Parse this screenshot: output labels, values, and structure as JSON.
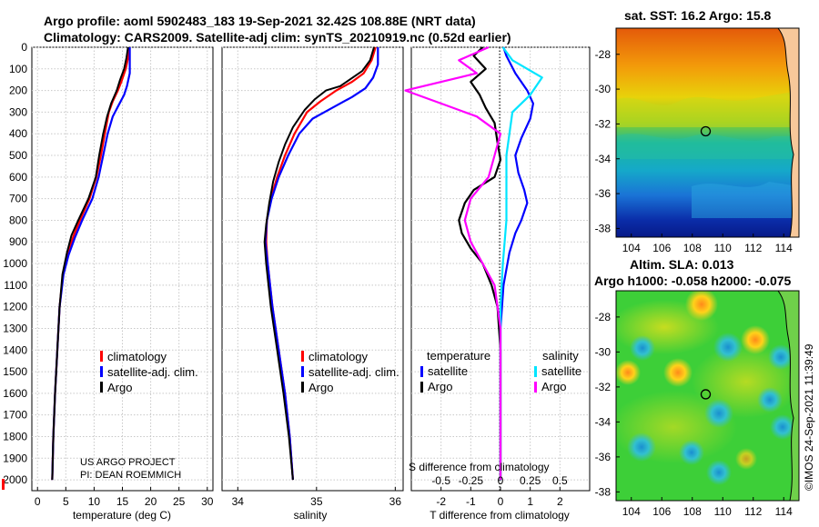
{
  "header": {
    "line1": "Argo profile: aoml 5902483_183 19-Sep-2021 32.42S 108.88E (NRT data)",
    "line2": "Climatology: CARS2009. Satellite-adj clim: synTS_20210919.nc (0.52d earlier)"
  },
  "credit": "©IMOS 24-Sep-2021 11:39:49",
  "project": {
    "line1": "US ARGO PROJECT",
    "line2": "PI: DEAN ROEMMICH"
  },
  "colors": {
    "climatology": "#ff0000",
    "satellite": "#0000ff",
    "argo": "#000000",
    "sal_sat": "#00e5ff",
    "sal_argo": "#ff00ff"
  },
  "chart_data": [
    {
      "type": "line",
      "name": "temperature-profile",
      "xlabel": "temperature (deg C)",
      "ylabel": "",
      "xlim": [
        -1,
        31
      ],
      "ylim": [
        2050,
        0
      ],
      "xticks": [
        "0",
        "5",
        "10",
        "15",
        "20",
        "25",
        "30"
      ],
      "yticks": [
        "0",
        "100",
        "200",
        "300",
        "400",
        "500",
        "600",
        "700",
        "800",
        "900",
        "1000",
        "1100",
        "1200",
        "1300",
        "1400",
        "1500",
        "1600",
        "1700",
        "1800",
        "1900",
        "2000"
      ],
      "legend": [
        "climatology",
        "satellite-adj. clim.",
        "Argo"
      ],
      "series": [
        {
          "name": "climatology",
          "points": [
            [
              16.2,
              0
            ],
            [
              16.0,
              50
            ],
            [
              15.6,
              100
            ],
            [
              14.8,
              160
            ],
            [
              14.2,
              200
            ],
            [
              13.3,
              250
            ],
            [
              12.6,
              300
            ],
            [
              11.9,
              400
            ],
            [
              11.2,
              500
            ],
            [
              10.4,
              600
            ],
            [
              9.2,
              700
            ],
            [
              7.5,
              800
            ],
            [
              6.4,
              870
            ],
            [
              5.4,
              950
            ],
            [
              4.5,
              1050
            ],
            [
              3.9,
              1200
            ],
            [
              3.5,
              1400
            ],
            [
              3.1,
              1600
            ],
            [
              2.8,
              1800
            ],
            [
              2.6,
              2000
            ]
          ]
        },
        {
          "name": "satellite-adj. clim.",
          "points": [
            [
              16.3,
              0
            ],
            [
              16.3,
              60
            ],
            [
              16.3,
              120
            ],
            [
              15.8,
              180
            ],
            [
              15.3,
              220
            ],
            [
              14.3,
              270
            ],
            [
              13.3,
              320
            ],
            [
              12.4,
              400
            ],
            [
              11.6,
              500
            ],
            [
              10.8,
              600
            ],
            [
              9.7,
              700
            ],
            [
              7.9,
              800
            ],
            [
              6.6,
              880
            ],
            [
              5.5,
              960
            ],
            [
              4.6,
              1050
            ],
            [
              3.9,
              1200
            ],
            [
              3.5,
              1400
            ],
            [
              3.1,
              1600
            ],
            [
              2.8,
              1800
            ],
            [
              2.6,
              2000
            ]
          ]
        },
        {
          "name": "Argo",
          "points": [
            [
              16.0,
              0
            ],
            [
              15.7,
              50
            ],
            [
              15.3,
              100
            ],
            [
              14.6,
              150
            ],
            [
              14.0,
              200
            ],
            [
              13.0,
              260
            ],
            [
              12.3,
              320
            ],
            [
              11.6,
              400
            ],
            [
              10.9,
              500
            ],
            [
              10.3,
              600
            ],
            [
              9.0,
              700
            ],
            [
              7.2,
              800
            ],
            [
              6.0,
              870
            ],
            [
              5.2,
              950
            ],
            [
              4.4,
              1050
            ],
            [
              3.9,
              1200
            ],
            [
              3.5,
              1400
            ],
            [
              3.1,
              1600
            ],
            [
              2.8,
              1800
            ],
            [
              2.6,
              2000
            ]
          ]
        }
      ]
    },
    {
      "type": "line",
      "name": "salinity-profile",
      "xlabel": "salinity",
      "xlim": [
        33.8,
        36.1
      ],
      "ylim": [
        2050,
        0
      ],
      "xticks": [
        "34",
        "35",
        "36"
      ],
      "legend": [
        "climatology",
        "satellite-adj. clim.",
        "Argo"
      ],
      "series": [
        {
          "name": "climatology",
          "points": [
            [
              35.75,
              0
            ],
            [
              35.7,
              60
            ],
            [
              35.6,
              120
            ],
            [
              35.45,
              160
            ],
            [
              35.25,
              200
            ],
            [
              35.05,
              250
            ],
            [
              34.88,
              300
            ],
            [
              34.72,
              400
            ],
            [
              34.6,
              500
            ],
            [
              34.5,
              600
            ],
            [
              34.42,
              700
            ],
            [
              34.37,
              800
            ],
            [
              34.36,
              900
            ],
            [
              34.38,
              1000
            ],
            [
              34.44,
              1200
            ],
            [
              34.52,
              1400
            ],
            [
              34.6,
              1600
            ],
            [
              34.66,
              1800
            ],
            [
              34.7,
              2000
            ]
          ]
        },
        {
          "name": "satellite-adj. clim.",
          "points": [
            [
              35.78,
              0
            ],
            [
              35.78,
              80
            ],
            [
              35.72,
              140
            ],
            [
              35.62,
              190
            ],
            [
              35.45,
              230
            ],
            [
              35.2,
              280
            ],
            [
              34.95,
              330
            ],
            [
              34.78,
              400
            ],
            [
              34.64,
              500
            ],
            [
              34.52,
              600
            ],
            [
              34.43,
              700
            ],
            [
              34.37,
              800
            ],
            [
              34.35,
              900
            ],
            [
              34.38,
              1000
            ],
            [
              34.44,
              1200
            ],
            [
              34.52,
              1400
            ],
            [
              34.6,
              1600
            ],
            [
              34.66,
              1800
            ],
            [
              34.7,
              2000
            ]
          ]
        },
        {
          "name": "Argo",
          "points": [
            [
              35.73,
              0
            ],
            [
              35.68,
              60
            ],
            [
              35.58,
              110
            ],
            [
              35.42,
              150
            ],
            [
              35.3,
              180
            ],
            [
              35.12,
              200
            ],
            [
              34.98,
              240
            ],
            [
              34.85,
              290
            ],
            [
              34.7,
              370
            ],
            [
              34.6,
              450
            ],
            [
              34.52,
              530
            ],
            [
              34.45,
              620
            ],
            [
              34.4,
              720
            ],
            [
              34.36,
              820
            ],
            [
              34.34,
              900
            ],
            [
              34.36,
              1000
            ],
            [
              34.42,
              1200
            ],
            [
              34.5,
              1400
            ],
            [
              34.58,
              1600
            ],
            [
              34.65,
              1800
            ],
            [
              34.7,
              2000
            ]
          ]
        }
      ]
    },
    {
      "type": "line",
      "name": "difference-profile",
      "xlabel": "T difference from climatology",
      "top_xlabel": "S difference from climatology",
      "xlim": [
        -3,
        3
      ],
      "ylim": [
        2050,
        0
      ],
      "xticks": [
        "-2",
        "-1",
        "0",
        "1",
        "2"
      ],
      "top_xticks": [
        "-0.5",
        "-0.25",
        "0",
        "0.25",
        "0.5"
      ],
      "legend_title_left": "temperature",
      "legend_title_right": "salinity",
      "legend_left": [
        "satellite",
        "Argo"
      ],
      "legend_right": [
        "satellite",
        "Argo"
      ],
      "series": [
        {
          "name": "T satellite",
          "points": [
            [
              0.1,
              0
            ],
            [
              0.2,
              40
            ],
            [
              0.5,
              120
            ],
            [
              0.9,
              200
            ],
            [
              1.1,
              260
            ],
            [
              1.0,
              330
            ],
            [
              0.7,
              420
            ],
            [
              0.5,
              500
            ],
            [
              0.6,
              580
            ],
            [
              0.8,
              660
            ],
            [
              0.9,
              720
            ],
            [
              0.7,
              800
            ],
            [
              0.5,
              860
            ],
            [
              0.3,
              950
            ],
            [
              0.1,
              1100
            ],
            [
              0.0,
              1300
            ],
            [
              0.0,
              1600
            ],
            [
              0.0,
              1800
            ],
            [
              0.0,
              2000
            ]
          ]
        },
        {
          "name": "T Argo",
          "points": [
            [
              -0.6,
              0
            ],
            [
              -0.9,
              40
            ],
            [
              -0.5,
              100
            ],
            [
              -1.0,
              160
            ],
            [
              -0.7,
              220
            ],
            [
              -0.5,
              280
            ],
            [
              -0.2,
              350
            ],
            [
              -0.1,
              440
            ],
            [
              0.0,
              520
            ],
            [
              -0.2,
              600
            ],
            [
              -0.9,
              660
            ],
            [
              -1.2,
              720
            ],
            [
              -1.4,
              800
            ],
            [
              -1.3,
              860
            ],
            [
              -1.0,
              930
            ],
            [
              -0.6,
              1000
            ],
            [
              -0.3,
              1100
            ],
            [
              -0.1,
              1200
            ],
            [
              0.0,
              1400
            ],
            [
              0.0,
              1700
            ],
            [
              0.0,
              2000
            ]
          ]
        },
        {
          "name": "S satellite",
          "points": [
            [
              0.02,
              0
            ],
            [
              0.1,
              60
            ],
            [
              0.35,
              140
            ],
            [
              0.25,
              220
            ],
            [
              0.1,
              300
            ],
            [
              0.05,
              500
            ],
            [
              0.05,
              800
            ],
            [
              0.02,
              1000
            ],
            [
              0.0,
              1200
            ],
            [
              0.0,
              1600
            ],
            [
              0.0,
              2000
            ]
          ]
        },
        {
          "name": "S Argo",
          "points": [
            [
              -0.1,
              0
            ],
            [
              -0.35,
              60
            ],
            [
              -0.2,
              120
            ],
            [
              -0.8,
              200
            ],
            [
              -0.5,
              260
            ],
            [
              -0.2,
              320
            ],
            [
              0.0,
              400
            ],
            [
              -0.05,
              500
            ],
            [
              -0.1,
              600
            ],
            [
              -0.25,
              700
            ],
            [
              -0.3,
              800
            ],
            [
              -0.25,
              900
            ],
            [
              -0.15,
              1000
            ],
            [
              -0.05,
              1100
            ],
            [
              0.0,
              1300
            ],
            [
              0.0,
              1700
            ],
            [
              0.0,
              2000
            ]
          ]
        }
      ]
    },
    {
      "type": "heatmap",
      "name": "sst-map",
      "title": "sat. SST: 16.2 Argo: 15.8",
      "xticks": [
        "104",
        "106",
        "108",
        "110",
        "112",
        "114"
      ],
      "yticks": [
        "-28",
        "-30",
        "-32",
        "-34",
        "-36",
        "-38"
      ],
      "xlim": [
        103,
        115
      ],
      "ylim": [
        -38.5,
        -26.5
      ],
      "argo_position": [
        108.88,
        -32.42
      ]
    },
    {
      "type": "heatmap",
      "name": "sla-map",
      "title1": "Altim. SLA: 0.013",
      "title2": "Argo h1000: -0.058 h2000: -0.075",
      "xticks": [
        "104",
        "106",
        "108",
        "110",
        "112",
        "114"
      ],
      "yticks": [
        "-28",
        "-30",
        "-32",
        "-34",
        "-36",
        "-38"
      ],
      "xlim": [
        103,
        115
      ],
      "ylim": [
        -38.5,
        -26.5
      ],
      "argo_position": [
        108.88,
        -32.42
      ]
    }
  ]
}
